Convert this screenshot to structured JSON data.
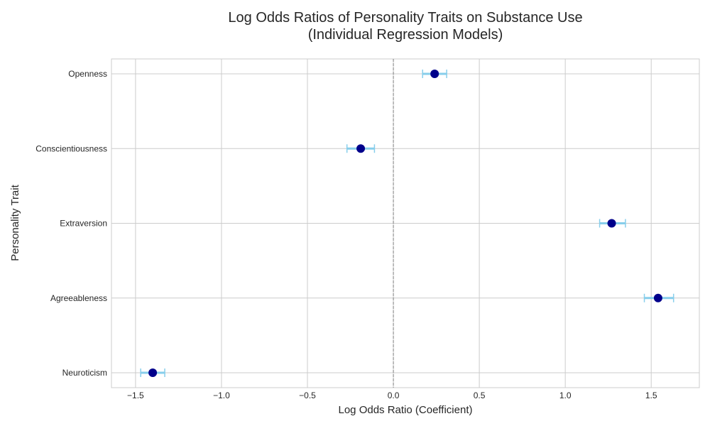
{
  "chart_data": {
    "type": "scatter",
    "subtype": "forest-plot",
    "title": "Log Odds Ratios of Personality Traits on Substance Use",
    "subtitle": "(Individual Regression Models)",
    "xlabel": "Log Odds Ratio (Coefficient)",
    "ylabel": "Personality Trait",
    "xlim": [
      -1.64,
      1.78
    ],
    "xticks": [
      -1.5,
      -1.0,
      -0.5,
      0.0,
      0.5,
      1.0,
      1.5
    ],
    "xtick_labels": [
      "−1.5",
      "−1.0",
      "−0.5",
      "0.0",
      "0.5",
      "1.0",
      "1.5"
    ],
    "grid": true,
    "reference_line": 0,
    "categories": [
      "Openness",
      "Conscientiousness",
      "Extraversion",
      "Agreeableness",
      "Neuroticism"
    ],
    "values": [
      0.24,
      -0.19,
      1.27,
      1.54,
      -1.4
    ],
    "ci_lower": [
      0.17,
      -0.27,
      1.2,
      1.46,
      -1.47
    ],
    "ci_upper": [
      0.31,
      -0.11,
      1.35,
      1.63,
      -1.33
    ],
    "colors": {
      "point": "#00008b",
      "errorbar": "#87ceeb",
      "grid": "#cccccc",
      "reference": "#808080",
      "text": "#262626"
    }
  }
}
